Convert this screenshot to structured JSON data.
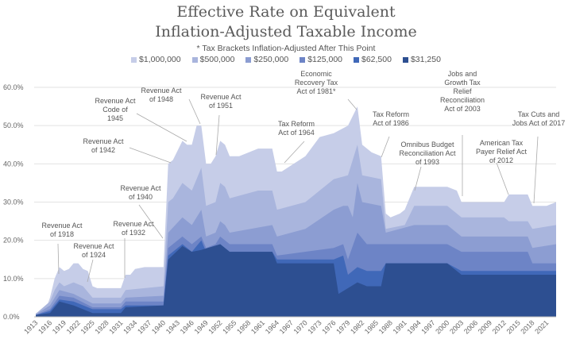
{
  "chart_data": {
    "type": "area",
    "title": [
      "Effective Rate on Equivalent",
      "Inflation-Adjusted Taxable Income"
    ],
    "subtitle": "* Tax Brackets Inflation-Adjusted After This Point",
    "xlabel": "",
    "ylabel": "",
    "xlim": [
      1913,
      2023
    ],
    "ylim": [
      0,
      60
    ],
    "y_ticks": [
      "0.0%",
      "10.0%",
      "20.0%",
      "30.0%",
      "40.0%",
      "50.0%",
      "60.0%"
    ],
    "x_ticks": [
      "1913",
      "1916",
      "1919",
      "1922",
      "1925",
      "1928",
      "1931",
      "1934",
      "1937",
      "1940",
      "1943",
      "1946",
      "1949",
      "1952",
      "1955",
      "1958",
      "1961",
      "1964",
      "1967",
      "1970",
      "1973",
      "1976",
      "1979",
      "1982",
      "1985",
      "1988",
      "1991",
      "1994",
      "1997",
      "2000",
      "2003",
      "2006",
      "2009",
      "2012",
      "2015",
      "2018",
      "2021"
    ],
    "grid": true,
    "legend_position": "top",
    "series": [
      {
        "name": "$1,000,000",
        "color": "#c6cde8",
        "points": [
          [
            1913,
            1
          ],
          [
            1915,
            1.5
          ],
          [
            1916,
            5
          ],
          [
            1917,
            10
          ],
          [
            1918,
            13
          ],
          [
            1919,
            12
          ],
          [
            1920,
            12.5
          ],
          [
            1921,
            14
          ],
          [
            1922,
            14
          ],
          [
            1923,
            12.5
          ],
          [
            1924,
            12
          ],
          [
            1925,
            8
          ],
          [
            1926,
            7.5
          ],
          [
            1931,
            7.5
          ],
          [
            1932,
            11
          ],
          [
            1933,
            11
          ],
          [
            1934,
            12.5
          ],
          [
            1936,
            13
          ],
          [
            1940,
            13
          ],
          [
            1941,
            40
          ],
          [
            1942,
            41
          ],
          [
            1944,
            46
          ],
          [
            1945,
            45
          ],
          [
            1946,
            45
          ],
          [
            1947,
            50
          ],
          [
            1948,
            50
          ],
          [
            1949,
            40
          ],
          [
            1950,
            40
          ],
          [
            1951,
            42
          ],
          [
            1952,
            46
          ],
          [
            1953,
            45
          ],
          [
            1954,
            42
          ],
          [
            1956,
            42
          ],
          [
            1960,
            44
          ],
          [
            1963,
            44
          ],
          [
            1964,
            38
          ],
          [
            1965,
            38
          ],
          [
            1970,
            42
          ],
          [
            1973,
            47
          ],
          [
            1976,
            48
          ],
          [
            1979,
            50
          ],
          [
            1981,
            55
          ],
          [
            1982,
            45
          ],
          [
            1984,
            43
          ],
          [
            1986,
            42
          ],
          [
            1987,
            27
          ],
          [
            1988,
            26
          ],
          [
            1990,
            27
          ],
          [
            1991,
            28
          ],
          [
            1993,
            34
          ],
          [
            2000,
            34
          ],
          [
            2002,
            33
          ],
          [
            2003,
            30
          ],
          [
            2012,
            30
          ],
          [
            2013,
            32
          ],
          [
            2017,
            32
          ],
          [
            2018,
            29
          ],
          [
            2021,
            29
          ],
          [
            2023,
            30
          ]
        ]
      },
      {
        "name": "$500,000",
        "color": "#a9b5dd",
        "points": [
          [
            1913,
            0.8
          ],
          [
            1916,
            4
          ],
          [
            1917,
            7
          ],
          [
            1918,
            9
          ],
          [
            1919,
            8
          ],
          [
            1921,
            9
          ],
          [
            1923,
            8
          ],
          [
            1925,
            5
          ],
          [
            1931,
            5
          ],
          [
            1932,
            7
          ],
          [
            1940,
            8
          ],
          [
            1941,
            30
          ],
          [
            1942,
            31
          ],
          [
            1944,
            35
          ],
          [
            1946,
            33
          ],
          [
            1948,
            39
          ],
          [
            1949,
            29
          ],
          [
            1951,
            30
          ],
          [
            1952,
            35
          ],
          [
            1953,
            34
          ],
          [
            1954,
            31
          ],
          [
            1960,
            33
          ],
          [
            1963,
            33
          ],
          [
            1964,
            28
          ],
          [
            1970,
            30
          ],
          [
            1976,
            36
          ],
          [
            1979,
            37
          ],
          [
            1981,
            45
          ],
          [
            1982,
            37
          ],
          [
            1986,
            36
          ],
          [
            1987,
            23
          ],
          [
            1991,
            24
          ],
          [
            1993,
            29
          ],
          [
            2000,
            29
          ],
          [
            2003,
            26
          ],
          [
            2012,
            26
          ],
          [
            2013,
            25
          ],
          [
            2017,
            25
          ],
          [
            2018,
            23
          ],
          [
            2023,
            24
          ]
        ]
      },
      {
        "name": "$250,000",
        "color": "#8c9dd2",
        "points": [
          [
            1913,
            0.6
          ],
          [
            1916,
            3
          ],
          [
            1918,
            7
          ],
          [
            1921,
            6
          ],
          [
            1925,
            3.5
          ],
          [
            1931,
            3.5
          ],
          [
            1932,
            5
          ],
          [
            1940,
            5.5
          ],
          [
            1941,
            22
          ],
          [
            1944,
            26
          ],
          [
            1946,
            24
          ],
          [
            1948,
            28
          ],
          [
            1949,
            21
          ],
          [
            1951,
            22
          ],
          [
            1952,
            25
          ],
          [
            1953,
            24
          ],
          [
            1954,
            22
          ],
          [
            1963,
            24
          ],
          [
            1964,
            21
          ],
          [
            1970,
            23
          ],
          [
            1976,
            28
          ],
          [
            1978,
            29
          ],
          [
            1979,
            29
          ],
          [
            1980,
            26
          ],
          [
            1981,
            35
          ],
          [
            1982,
            30
          ],
          [
            1986,
            29
          ],
          [
            1987,
            22
          ],
          [
            1993,
            24
          ],
          [
            2000,
            24
          ],
          [
            2003,
            21
          ],
          [
            2017,
            21
          ],
          [
            2018,
            18
          ],
          [
            2023,
            19
          ]
        ]
      },
      {
        "name": "$125,000",
        "color": "#6d84c6",
        "points": [
          [
            1913,
            0.5
          ],
          [
            1916,
            2
          ],
          [
            1918,
            5.5
          ],
          [
            1921,
            5
          ],
          [
            1925,
            2.5
          ],
          [
            1931,
            2.5
          ],
          [
            1932,
            4
          ],
          [
            1940,
            4
          ],
          [
            1941,
            18
          ],
          [
            1944,
            21
          ],
          [
            1946,
            19
          ],
          [
            1948,
            21
          ],
          [
            1949,
            18
          ],
          [
            1951,
            19
          ],
          [
            1952,
            21
          ],
          [
            1953,
            20
          ],
          [
            1954,
            19
          ],
          [
            1963,
            19
          ],
          [
            1964,
            16
          ],
          [
            1976,
            18
          ],
          [
            1978,
            19
          ],
          [
            1979,
            15
          ],
          [
            1981,
            22
          ],
          [
            1983,
            19
          ],
          [
            1986,
            19
          ],
          [
            1987,
            19
          ],
          [
            2000,
            19
          ],
          [
            2003,
            17
          ],
          [
            2017,
            17
          ],
          [
            2018,
            14
          ],
          [
            2023,
            14
          ]
        ]
      },
      {
        "name": "$62,500",
        "color": "#4068b8",
        "points": [
          [
            1913,
            0.5
          ],
          [
            1916,
            1.5
          ],
          [
            1918,
            4.5
          ],
          [
            1921,
            4
          ],
          [
            1925,
            2
          ],
          [
            1931,
            2
          ],
          [
            1932,
            3
          ],
          [
            1940,
            3
          ],
          [
            1941,
            16
          ],
          [
            1944,
            19
          ],
          [
            1946,
            17
          ],
          [
            1948,
            20
          ],
          [
            1949,
            17
          ],
          [
            1952,
            19
          ],
          [
            1954,
            17
          ],
          [
            1963,
            17
          ],
          [
            1964,
            15
          ],
          [
            1976,
            15
          ],
          [
            1978,
            16
          ],
          [
            1979,
            11
          ],
          [
            1981,
            13
          ],
          [
            1983,
            12
          ],
          [
            1986,
            12
          ],
          [
            1987,
            14
          ],
          [
            2000,
            14
          ],
          [
            2003,
            12
          ],
          [
            2023,
            12
          ]
        ]
      },
      {
        "name": "$31,250",
        "color": "#2d4f91",
        "points": [
          [
            1913,
            0.5
          ],
          [
            1916,
            1
          ],
          [
            1918,
            4
          ],
          [
            1921,
            3
          ],
          [
            1925,
            1
          ],
          [
            1931,
            1
          ],
          [
            1932,
            2.5
          ],
          [
            1940,
            3
          ],
          [
            1941,
            15
          ],
          [
            1944,
            18.5
          ],
          [
            1946,
            17
          ],
          [
            1948,
            17.5
          ],
          [
            1952,
            19
          ],
          [
            1954,
            17
          ],
          [
            1963,
            17
          ],
          [
            1964,
            14
          ],
          [
            1976,
            14
          ],
          [
            1977,
            6
          ],
          [
            1981,
            9
          ],
          [
            1983,
            8
          ],
          [
            1986,
            8
          ],
          [
            1987,
            14
          ],
          [
            2000,
            14
          ],
          [
            2003,
            11
          ],
          [
            2023,
            11
          ]
        ]
      }
    ],
    "annotations": [
      [
        "Revenue Act",
        "of 1918"
      ],
      [
        "Revenue Act",
        "of 1924"
      ],
      [
        "Revenue Act",
        "of 1932"
      ],
      [
        "Revenue Act",
        "of 1940"
      ],
      [
        "Revenue Act",
        "of 1942"
      ],
      [
        "Revenue Act",
        "Code of",
        "1945"
      ],
      [
        "Revenue Act",
        "of 1948"
      ],
      [
        "Revenue Act",
        "of 1951"
      ],
      [
        "Tax Reform",
        "Act of 1964"
      ],
      [
        "Economic",
        "Recovery Tax",
        "Act of 1981*"
      ],
      [
        "Tax Reform",
        "Act of 1986"
      ],
      [
        "Omnibus Budget",
        "Reconciliation Act",
        "of 1993"
      ],
      [
        "Jobs and",
        "Growth Tax",
        "Relief",
        "Reconciliation",
        "Act of 2003"
      ],
      [
        "American Tax",
        "Payer Relief Act",
        "of 2012"
      ],
      [
        "Tax Cuts and",
        "Jobs Act of 2017"
      ]
    ]
  }
}
